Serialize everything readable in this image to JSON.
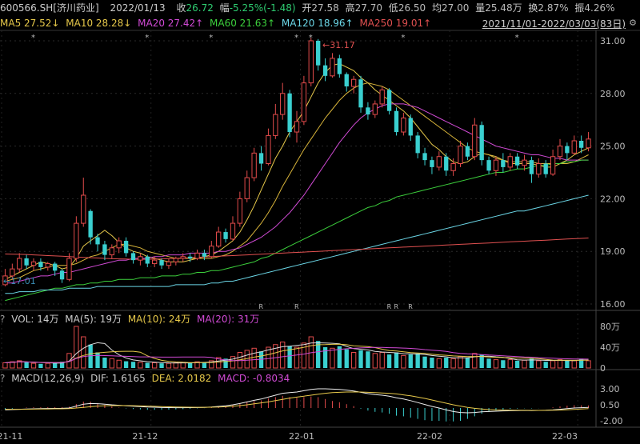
{
  "header": {
    "symbol": "600566.SH[济川药业]",
    "date": "2022/01/13",
    "close_label": "收",
    "close": "26.72",
    "change_label": "幅",
    "change": "-5.25%(-1.48)",
    "open_label": "开",
    "open": "27.58",
    "high_label": "高",
    "high": "27.70",
    "low_label": "低",
    "low": "26.50",
    "avg_label": "均",
    "avg": "27.00",
    "vol_label": "量",
    "vol": "25.48万",
    "turnover_label": "换",
    "turnover": "2.87%",
    "amp_label": "振",
    "amp": "4.26%"
  },
  "ma_legend": {
    "ma5": "MA5 27.52↓",
    "ma10": "MA10 28.28↓",
    "ma20": "MA20 27.42↑",
    "ma60": "MA60 21.63↑",
    "ma120": "MA120 18.96↑",
    "ma250": "MA250 19.01↑",
    "range": "2021/11/01-2022/03/03(83日)"
  },
  "colors": {
    "up": "#e24b4b",
    "down": "#3ad0d0",
    "ma5": "#e6c84a",
    "ma10": "#e6c84a",
    "ma20": "#d04ad4",
    "ma60": "#3ccf3c",
    "ma120": "#6bd6e6",
    "ma250": "#e05050"
  },
  "price_axis": [
    "31.00",
    "28.00",
    "25.00",
    "22.00",
    "19.00",
    "16.00"
  ],
  "annotations": {
    "high": "←31.17",
    "low": "←17.01",
    "r": "R"
  },
  "vol_panel": {
    "q": "?",
    "vol": "VOL: 14万",
    "ma5": "MA(5): 19万",
    "ma10": "MA(10): 24万",
    "ma20": "MA(20): 31万",
    "axis": [
      "80万",
      "40万",
      "0"
    ]
  },
  "macd_panel": {
    "q": "?",
    "title": "MACD(12,26,9)",
    "dif": "DIF: 1.6165",
    "dea": "DEA: 2.0182",
    "macd": "MACD: -0.8034",
    "axis": [
      "3.00",
      "0.50",
      "-2.00"
    ]
  },
  "date_axis": [
    "21-11",
    "21-12",
    "22-01",
    "22-02",
    "22-03"
  ],
  "chart_data": {
    "type": "candlestick",
    "ylim": [
      16,
      31.5
    ],
    "candles": [
      {
        "o": 17.1,
        "c": 17.6,
        "h": 18.0,
        "l": 17.01
      },
      {
        "o": 17.6,
        "c": 18.0,
        "h": 18.3,
        "l": 17.4
      },
      {
        "o": 18.0,
        "c": 18.6,
        "h": 18.9,
        "l": 17.8
      },
      {
        "o": 18.6,
        "c": 18.2,
        "h": 18.8,
        "l": 18.0
      },
      {
        "o": 18.2,
        "c": 18.4,
        "h": 18.6,
        "l": 17.9
      },
      {
        "o": 18.4,
        "c": 18.1,
        "h": 18.6,
        "l": 17.9
      },
      {
        "o": 18.1,
        "c": 18.3,
        "h": 18.4,
        "l": 17.9
      },
      {
        "o": 18.3,
        "c": 17.9,
        "h": 18.4,
        "l": 17.6
      },
      {
        "o": 17.9,
        "c": 17.4,
        "h": 18.0,
        "l": 17.2
      },
      {
        "o": 17.4,
        "c": 18.6,
        "h": 18.9,
        "l": 17.3
      },
      {
        "o": 18.6,
        "c": 20.6,
        "h": 21.0,
        "l": 18.4
      },
      {
        "o": 20.6,
        "c": 22.2,
        "h": 23.2,
        "l": 20.4
      },
      {
        "o": 21.3,
        "c": 19.8,
        "h": 21.4,
        "l": 19.4
      },
      {
        "o": 19.8,
        "c": 19.4,
        "h": 20.0,
        "l": 19.0
      },
      {
        "o": 19.4,
        "c": 18.8,
        "h": 19.6,
        "l": 18.5
      },
      {
        "o": 18.8,
        "c": 19.2,
        "h": 19.4,
        "l": 18.6
      },
      {
        "o": 19.2,
        "c": 19.6,
        "h": 19.8,
        "l": 18.9
      },
      {
        "o": 19.6,
        "c": 18.9,
        "h": 19.8,
        "l": 18.7
      },
      {
        "o": 18.9,
        "c": 18.5,
        "h": 19.0,
        "l": 18.3
      },
      {
        "o": 18.5,
        "c": 18.7,
        "h": 18.9,
        "l": 18.2
      },
      {
        "o": 18.7,
        "c": 18.3,
        "h": 18.8,
        "l": 18.1
      },
      {
        "o": 18.3,
        "c": 18.5,
        "h": 18.7,
        "l": 18.1
      },
      {
        "o": 18.5,
        "c": 18.2,
        "h": 18.6,
        "l": 18.0
      },
      {
        "o": 18.2,
        "c": 18.4,
        "h": 18.6,
        "l": 18.0
      },
      {
        "o": 18.4,
        "c": 18.6,
        "h": 18.7,
        "l": 18.2
      },
      {
        "o": 18.6,
        "c": 18.7,
        "h": 18.9,
        "l": 18.4
      },
      {
        "o": 18.7,
        "c": 18.6,
        "h": 18.9,
        "l": 18.4
      },
      {
        "o": 18.6,
        "c": 18.9,
        "h": 19.1,
        "l": 18.5
      },
      {
        "o": 18.9,
        "c": 18.7,
        "h": 19.1,
        "l": 18.5
      },
      {
        "o": 18.7,
        "c": 19.3,
        "h": 19.6,
        "l": 18.6
      },
      {
        "o": 19.3,
        "c": 20.1,
        "h": 20.4,
        "l": 19.2
      },
      {
        "o": 20.1,
        "c": 19.7,
        "h": 20.3,
        "l": 19.5
      },
      {
        "o": 19.7,
        "c": 20.6,
        "h": 21.0,
        "l": 19.6
      },
      {
        "o": 20.6,
        "c": 22.0,
        "h": 22.4,
        "l": 20.4
      },
      {
        "o": 22.0,
        "c": 23.2,
        "h": 23.6,
        "l": 21.8
      },
      {
        "o": 23.2,
        "c": 24.6,
        "h": 24.9,
        "l": 23.0
      },
      {
        "o": 24.6,
        "c": 24.0,
        "h": 25.0,
        "l": 23.6
      },
      {
        "o": 24.0,
        "c": 25.6,
        "h": 26.0,
        "l": 23.9
      },
      {
        "o": 25.6,
        "c": 26.8,
        "h": 27.4,
        "l": 25.4
      },
      {
        "o": 26.8,
        "c": 28.0,
        "h": 28.6,
        "l": 26.5
      },
      {
        "o": 28.0,
        "c": 25.8,
        "h": 28.2,
        "l": 25.5
      },
      {
        "o": 25.8,
        "c": 26.4,
        "h": 27.0,
        "l": 25.2
      },
      {
        "o": 26.4,
        "c": 28.6,
        "h": 29.0,
        "l": 26.2
      },
      {
        "o": 28.6,
        "c": 31.0,
        "h": 31.17,
        "l": 28.4
      },
      {
        "o": 31.0,
        "c": 29.6,
        "h": 31.1,
        "l": 29.3
      },
      {
        "o": 29.6,
        "c": 29.0,
        "h": 30.0,
        "l": 28.7
      },
      {
        "o": 29.0,
        "c": 30.0,
        "h": 30.3,
        "l": 28.9
      },
      {
        "o": 30.0,
        "c": 29.1,
        "h": 30.2,
        "l": 28.9
      },
      {
        "o": 29.1,
        "c": 28.4,
        "h": 29.2,
        "l": 28.1
      },
      {
        "o": 28.4,
        "c": 28.8,
        "h": 29.0,
        "l": 28.0
      },
      {
        "o": 28.8,
        "c": 27.2,
        "h": 29.0,
        "l": 26.9
      },
      {
        "o": 27.2,
        "c": 26.8,
        "h": 27.5,
        "l": 26.5
      },
      {
        "o": 26.8,
        "c": 27.4,
        "h": 27.6,
        "l": 26.6
      },
      {
        "o": 27.4,
        "c": 28.2,
        "h": 28.4,
        "l": 27.2
      },
      {
        "o": 28.2,
        "c": 27.0,
        "h": 28.3,
        "l": 26.8
      },
      {
        "o": 27.0,
        "c": 25.8,
        "h": 27.2,
        "l": 25.6
      },
      {
        "o": 25.8,
        "c": 26.6,
        "h": 26.9,
        "l": 25.6
      },
      {
        "o": 26.6,
        "c": 25.6,
        "h": 26.8,
        "l": 25.3
      },
      {
        "o": 25.6,
        "c": 24.6,
        "h": 25.8,
        "l": 24.3
      },
      {
        "o": 24.6,
        "c": 24.2,
        "h": 24.9,
        "l": 23.9
      },
      {
        "o": 24.2,
        "c": 23.8,
        "h": 24.4,
        "l": 23.4
      },
      {
        "o": 23.8,
        "c": 24.4,
        "h": 24.7,
        "l": 23.6
      },
      {
        "o": 24.4,
        "c": 23.6,
        "h": 24.6,
        "l": 23.3
      },
      {
        "o": 23.6,
        "c": 24.0,
        "h": 24.3,
        "l": 23.3
      },
      {
        "o": 24.0,
        "c": 25.0,
        "h": 25.3,
        "l": 23.8
      },
      {
        "o": 25.0,
        "c": 24.4,
        "h": 25.2,
        "l": 24.2
      },
      {
        "o": 24.4,
        "c": 26.2,
        "h": 26.6,
        "l": 24.2
      },
      {
        "o": 26.2,
        "c": 24.2,
        "h": 26.4,
        "l": 23.9
      },
      {
        "o": 24.2,
        "c": 23.6,
        "h": 24.4,
        "l": 23.4
      },
      {
        "o": 23.6,
        "c": 24.2,
        "h": 24.4,
        "l": 23.3
      },
      {
        "o": 24.2,
        "c": 23.8,
        "h": 24.6,
        "l": 23.5
      },
      {
        "o": 23.8,
        "c": 24.4,
        "h": 24.6,
        "l": 23.6
      },
      {
        "o": 24.4,
        "c": 23.9,
        "h": 24.6,
        "l": 23.7
      },
      {
        "o": 23.9,
        "c": 24.2,
        "h": 24.5,
        "l": 23.6
      },
      {
        "o": 24.2,
        "c": 23.4,
        "h": 24.4,
        "l": 22.9
      },
      {
        "o": 23.4,
        "c": 24.0,
        "h": 24.3,
        "l": 23.2
      },
      {
        "o": 24.0,
        "c": 23.4,
        "h": 24.2,
        "l": 23.2
      },
      {
        "o": 23.4,
        "c": 24.4,
        "h": 24.8,
        "l": 23.3
      },
      {
        "o": 24.4,
        "c": 25.0,
        "h": 25.4,
        "l": 24.2
      },
      {
        "o": 25.0,
        "c": 24.6,
        "h": 25.2,
        "l": 24.2
      },
      {
        "o": 24.6,
        "c": 25.3,
        "h": 25.6,
        "l": 24.5
      },
      {
        "o": 25.3,
        "c": 24.9,
        "h": 25.6,
        "l": 24.6
      },
      {
        "o": 24.9,
        "c": 25.4,
        "h": 25.8,
        "l": 24.7
      }
    ],
    "ma": {
      "ma5": [
        17.4,
        17.6,
        17.8,
        18.0,
        18.2,
        18.4,
        18.3,
        18.2,
        18.0,
        18.1,
        18.6,
        19.3,
        19.6,
        19.9,
        20.2,
        19.9,
        19.5,
        19.2,
        19.0,
        18.9,
        18.7,
        18.6,
        18.5,
        18.4,
        18.4,
        18.4,
        18.5,
        18.6,
        18.7,
        18.8,
        19.0,
        19.3,
        19.6,
        20.1,
        20.8,
        21.6,
        22.5,
        23.4,
        24.3,
        25.0,
        25.8,
        26.4,
        27.0,
        27.8,
        28.6,
        29.2,
        29.6,
        29.7,
        29.5,
        29.3,
        28.9,
        28.6,
        28.2,
        27.9,
        27.6,
        27.3,
        27.0,
        26.6,
        26.1,
        25.6,
        25.1,
        24.8,
        24.4,
        24.1,
        24.0,
        24.1,
        24.4,
        24.6,
        24.5,
        24.4,
        24.2,
        24.0,
        24.0,
        24.0,
        24.0,
        23.9,
        23.8,
        23.8,
        24.0,
        24.2,
        24.5,
        24.7,
        24.9
      ],
      "ma10": [
        17.3,
        17.4,
        17.5,
        17.7,
        17.9,
        18.0,
        18.1,
        18.2,
        18.2,
        18.2,
        18.3,
        18.5,
        18.7,
        18.8,
        19.0,
        19.2,
        19.4,
        19.4,
        19.3,
        19.2,
        19.0,
        18.9,
        18.8,
        18.7,
        18.6,
        18.6,
        18.6,
        18.6,
        18.6,
        18.6,
        18.7,
        18.8,
        19.0,
        19.3,
        19.6,
        20.1,
        20.6,
        21.2,
        21.9,
        22.7,
        23.4,
        24.1,
        24.8,
        25.4,
        26.0,
        26.6,
        27.1,
        27.6,
        28.0,
        28.3,
        28.5,
        28.6,
        28.5,
        28.4,
        28.2,
        27.9,
        27.6,
        27.3,
        27.0,
        26.7,
        26.4,
        26.1,
        25.8,
        25.5,
        25.2,
        24.9,
        24.7,
        24.6,
        24.5,
        24.3,
        24.2,
        24.1,
        24.1,
        24.1,
        24.1,
        24.0,
        24.0,
        24.0,
        24.0,
        24.0,
        24.1,
        24.3,
        24.5
      ],
      "ma20": [
        17.2,
        17.2,
        17.3,
        17.4,
        17.5,
        17.6,
        17.6,
        17.7,
        17.8,
        17.8,
        17.9,
        18.0,
        18.1,
        18.2,
        18.3,
        18.4,
        18.5,
        18.5,
        18.6,
        18.6,
        18.6,
        18.7,
        18.7,
        18.8,
        18.8,
        18.8,
        18.9,
        18.9,
        18.9,
        18.9,
        19.0,
        19.0,
        19.1,
        19.2,
        19.4,
        19.6,
        19.8,
        20.1,
        20.4,
        20.8,
        21.2,
        21.7,
        22.2,
        22.8,
        23.4,
        24.0,
        24.6,
        25.2,
        25.7,
        26.2,
        26.6,
        26.9,
        27.1,
        27.3,
        27.4,
        27.4,
        27.4,
        27.3,
        27.2,
        27.0,
        26.8,
        26.6,
        26.4,
        26.2,
        26.0,
        25.8,
        25.6,
        25.4,
        25.2,
        25.0,
        24.9,
        24.8,
        24.7,
        24.6,
        24.5,
        24.5,
        24.4,
        24.3,
        24.3,
        24.2,
        24.2,
        24.2,
        24.2
      ],
      "ma60": [
        16.2,
        16.3,
        16.4,
        16.5,
        16.6,
        16.7,
        16.8,
        16.9,
        16.9,
        17.0,
        17.1,
        17.1,
        17.2,
        17.2,
        17.3,
        17.3,
        17.4,
        17.4,
        17.4,
        17.5,
        17.5,
        17.5,
        17.6,
        17.6,
        17.6,
        17.7,
        17.7,
        17.8,
        17.8,
        17.9,
        17.9,
        18.0,
        18.1,
        18.2,
        18.3,
        18.4,
        18.6,
        18.7,
        18.9,
        19.1,
        19.3,
        19.5,
        19.7,
        19.9,
        20.1,
        20.3,
        20.5,
        20.7,
        20.9,
        21.1,
        21.3,
        21.5,
        21.6,
        21.8,
        21.9,
        22.1,
        22.2,
        22.3,
        22.4,
        22.5,
        22.6,
        22.7,
        22.8,
        22.9,
        23.0,
        23.1,
        23.2,
        23.3,
        23.4,
        23.5,
        23.5,
        23.6,
        23.7,
        23.7,
        23.8,
        23.9,
        23.9,
        24.0,
        24.0,
        24.1,
        24.1,
        24.2,
        24.2
      ],
      "ma120": [
        16.6,
        16.6,
        16.7,
        16.7,
        16.7,
        16.8,
        16.8,
        16.8,
        16.8,
        16.9,
        16.9,
        16.9,
        16.9,
        17.0,
        17.0,
        17.0,
        17.0,
        17.0,
        17.0,
        17.0,
        17.0,
        17.0,
        17.0,
        17.0,
        17.1,
        17.1,
        17.1,
        17.1,
        17.1,
        17.2,
        17.2,
        17.3,
        17.3,
        17.4,
        17.5,
        17.6,
        17.7,
        17.8,
        17.9,
        18.0,
        18.1,
        18.2,
        18.3,
        18.4,
        18.5,
        18.6,
        18.7,
        18.8,
        18.9,
        19.0,
        19.1,
        19.2,
        19.3,
        19.4,
        19.5,
        19.6,
        19.7,
        19.8,
        19.9,
        20.0,
        20.1,
        20.2,
        20.3,
        20.4,
        20.5,
        20.6,
        20.7,
        20.8,
        20.9,
        21.0,
        21.1,
        21.2,
        21.3,
        21.3,
        21.4,
        21.5,
        21.6,
        21.7,
        21.8,
        21.9,
        22.0,
        22.1,
        22.2
      ],
      "ma250": [
        18.85,
        18.84,
        18.83,
        18.82,
        18.8,
        18.78,
        18.76,
        18.74,
        18.72,
        18.7,
        18.68,
        18.66,
        18.64,
        18.62,
        18.6,
        18.58,
        18.57,
        18.56,
        18.55,
        18.55,
        18.55,
        18.56,
        18.57,
        18.58,
        18.6,
        18.62,
        18.64,
        18.66,
        18.68,
        18.7,
        18.72,
        18.74,
        18.76,
        18.78,
        18.8,
        18.82,
        18.84,
        18.86,
        18.88,
        18.9,
        18.92,
        18.94,
        18.96,
        18.98,
        19.0,
        19.02,
        19.04,
        19.06,
        19.08,
        19.1,
        19.12,
        19.14,
        19.16,
        19.18,
        19.2,
        19.22,
        19.24,
        19.26,
        19.28,
        19.3,
        19.32,
        19.34,
        19.36,
        19.38,
        19.4,
        19.42,
        19.44,
        19.46,
        19.48,
        19.5,
        19.52,
        19.54,
        19.56,
        19.58,
        19.6,
        19.62,
        19.64,
        19.66,
        19.68,
        19.7,
        19.72,
        19.74,
        19.76
      ]
    },
    "volume": [
      10,
      12,
      14,
      11,
      9,
      8,
      9,
      10,
      12,
      28,
      80,
      60,
      45,
      30,
      20,
      18,
      15,
      13,
      12,
      11,
      10,
      10,
      9,
      9,
      10,
      11,
      10,
      12,
      11,
      14,
      20,
      18,
      22,
      30,
      34,
      38,
      32,
      40,
      45,
      50,
      42,
      40,
      48,
      60,
      52,
      40,
      38,
      42,
      36,
      30,
      34,
      32,
      28,
      30,
      26,
      30,
      24,
      26,
      28,
      22,
      20,
      18,
      20,
      18,
      22,
      20,
      28,
      26,
      18,
      16,
      15,
      16,
      14,
      15,
      18,
      14,
      12,
      14,
      16,
      15,
      14,
      18,
      14
    ],
    "macd": {
      "dif": [
        -0.3,
        -0.25,
        -0.2,
        -0.15,
        -0.12,
        -0.1,
        -0.08,
        -0.06,
        -0.05,
        0.0,
        0.3,
        0.6,
        0.7,
        0.68,
        0.6,
        0.5,
        0.42,
        0.35,
        0.28,
        0.22,
        0.16,
        0.12,
        0.08,
        0.06,
        0.05,
        0.05,
        0.06,
        0.08,
        0.1,
        0.15,
        0.25,
        0.35,
        0.5,
        0.7,
        0.95,
        1.2,
        1.4,
        1.7,
        2.0,
        2.3,
        2.4,
        2.5,
        2.7,
        2.9,
        3.0,
        3.0,
        2.95,
        2.9,
        2.8,
        2.65,
        2.45,
        2.25,
        2.1,
        2.0,
        1.85,
        1.6,
        1.4,
        1.15,
        0.85,
        0.55,
        0.25,
        0.0,
        -0.3,
        -0.55,
        -0.7,
        -0.75,
        -0.7,
        -0.6,
        -0.55,
        -0.5,
        -0.45,
        -0.42,
        -0.4,
        -0.38,
        -0.4,
        -0.38,
        -0.36,
        -0.3,
        -0.2,
        -0.1,
        0.0,
        0.05,
        0.1
      ],
      "dea": [
        -0.2,
        -0.2,
        -0.2,
        -0.19,
        -0.18,
        -0.16,
        -0.15,
        -0.13,
        -0.12,
        -0.1,
        0.0,
        0.1,
        0.2,
        0.3,
        0.35,
        0.38,
        0.39,
        0.38,
        0.36,
        0.33,
        0.3,
        0.26,
        0.22,
        0.19,
        0.16,
        0.14,
        0.12,
        0.11,
        0.11,
        0.12,
        0.15,
        0.2,
        0.28,
        0.38,
        0.5,
        0.65,
        0.8,
        0.95,
        1.15,
        1.35,
        1.55,
        1.7,
        1.85,
        2.0,
        2.15,
        2.3,
        2.4,
        2.45,
        2.5,
        2.5,
        2.5,
        2.45,
        2.4,
        2.35,
        2.3,
        2.2,
        2.05,
        1.9,
        1.7,
        1.5,
        1.25,
        1.0,
        0.75,
        0.5,
        0.3,
        0.1,
        -0.05,
        -0.15,
        -0.25,
        -0.3,
        -0.33,
        -0.35,
        -0.36,
        -0.36,
        -0.37,
        -0.37,
        -0.36,
        -0.35,
        -0.32,
        -0.28,
        -0.22,
        -0.16,
        -0.1
      ]
    }
  }
}
